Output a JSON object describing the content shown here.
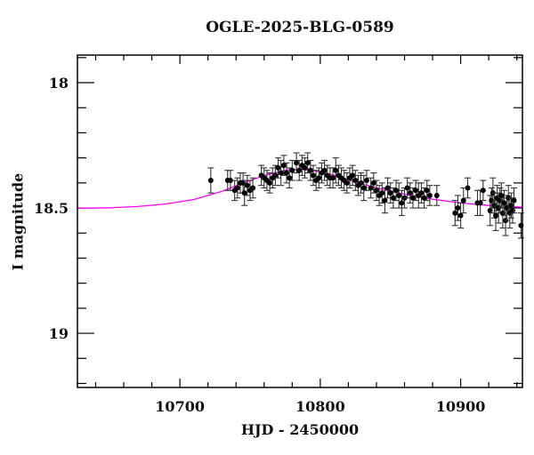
{
  "chart_data": {
    "type": "scatter",
    "title": "OGLE-2025-BLG-0589",
    "xlabel": "HJD - 2450000",
    "ylabel": "I magnitude",
    "xlim": [
      10627,
      10944
    ],
    "ylim": [
      19.216,
      17.89
    ],
    "y_inverted": true,
    "xticks_major": [
      10700,
      10800,
      10900
    ],
    "xticks_minor_step": 20,
    "yticks_major": [
      18,
      18.5,
      19
    ],
    "yticks_major_labels": [
      "18",
      "18.5",
      "19"
    ],
    "yticks_minor_step": 0.1,
    "grid": false,
    "legend": null,
    "colors": {
      "data": "#000000",
      "errorbar": "#333333",
      "model": "#ff00ff",
      "frame": "#000000"
    },
    "series": [
      {
        "name": "OGLE photometry",
        "kind": "errorbar",
        "points": [
          [
            10722,
            18.39,
            0.05
          ],
          [
            10734,
            18.39,
            0.04
          ],
          [
            10736,
            18.39,
            0.04
          ],
          [
            10739,
            18.43,
            0.04
          ],
          [
            10741,
            18.42,
            0.04
          ],
          [
            10743,
            18.4,
            0.04
          ],
          [
            10745,
            18.4,
            0.04
          ],
          [
            10746,
            18.44,
            0.05
          ],
          [
            10748,
            18.41,
            0.04
          ],
          [
            10750,
            18.43,
            0.04
          ],
          [
            10752,
            18.42,
            0.04
          ],
          [
            10758,
            18.37,
            0.04
          ],
          [
            10760,
            18.38,
            0.04
          ],
          [
            10762,
            18.39,
            0.04
          ],
          [
            10764,
            18.4,
            0.04
          ],
          [
            10766,
            18.38,
            0.04
          ],
          [
            10768,
            18.37,
            0.04
          ],
          [
            10770,
            18.34,
            0.04
          ],
          [
            10772,
            18.36,
            0.05
          ],
          [
            10774,
            18.33,
            0.04
          ],
          [
            10776,
            18.36,
            0.04
          ],
          [
            10778,
            18.38,
            0.04
          ],
          [
            10780,
            18.35,
            0.04
          ],
          [
            10783,
            18.32,
            0.04
          ],
          [
            10785,
            18.35,
            0.04
          ],
          [
            10787,
            18.33,
            0.04
          ],
          [
            10789,
            18.34,
            0.04
          ],
          [
            10791,
            18.32,
            0.04
          ],
          [
            10793,
            18.35,
            0.04
          ],
          [
            10795,
            18.37,
            0.04
          ],
          [
            10797,
            18.39,
            0.04
          ],
          [
            10799,
            18.38,
            0.04
          ],
          [
            10801,
            18.36,
            0.04
          ],
          [
            10803,
            18.35,
            0.04
          ],
          [
            10805,
            18.37,
            0.04
          ],
          [
            10807,
            18.38,
            0.04
          ],
          [
            10809,
            18.38,
            0.04
          ],
          [
            10811,
            18.35,
            0.05
          ],
          [
            10813,
            18.37,
            0.04
          ],
          [
            10815,
            18.38,
            0.04
          ],
          [
            10817,
            18.39,
            0.04
          ],
          [
            10819,
            18.4,
            0.04
          ],
          [
            10821,
            18.38,
            0.04
          ],
          [
            10823,
            18.37,
            0.04
          ],
          [
            10825,
            18.39,
            0.04
          ],
          [
            10827,
            18.41,
            0.04
          ],
          [
            10829,
            18.4,
            0.04
          ],
          [
            10831,
            18.42,
            0.05
          ],
          [
            10833,
            18.39,
            0.04
          ],
          [
            10836,
            18.42,
            0.04
          ],
          [
            10838,
            18.4,
            0.04
          ],
          [
            10840,
            18.43,
            0.04
          ],
          [
            10842,
            18.45,
            0.04
          ],
          [
            10844,
            18.44,
            0.04
          ],
          [
            10846,
            18.47,
            0.05
          ],
          [
            10848,
            18.42,
            0.04
          ],
          [
            10850,
            18.44,
            0.04
          ],
          [
            10852,
            18.46,
            0.04
          ],
          [
            10854,
            18.43,
            0.04
          ],
          [
            10856,
            18.45,
            0.05
          ],
          [
            10858,
            18.48,
            0.05
          ],
          [
            10860,
            18.46,
            0.04
          ],
          [
            10862,
            18.42,
            0.04
          ],
          [
            10864,
            18.44,
            0.04
          ],
          [
            10866,
            18.46,
            0.04
          ],
          [
            10868,
            18.43,
            0.04
          ],
          [
            10870,
            18.45,
            0.05
          ],
          [
            10872,
            18.44,
            0.04
          ],
          [
            10874,
            18.46,
            0.04
          ],
          [
            10876,
            18.43,
            0.04
          ],
          [
            10878,
            18.45,
            0.04
          ],
          [
            10883,
            18.45,
            0.04
          ],
          [
            10896,
            18.52,
            0.05
          ],
          [
            10898,
            18.5,
            0.05
          ],
          [
            10900,
            18.53,
            0.05
          ],
          [
            10902,
            18.47,
            0.05
          ],
          [
            10905,
            18.42,
            0.04
          ],
          [
            10912,
            18.48,
            0.05
          ],
          [
            10914,
            18.48,
            0.05
          ],
          [
            10916,
            18.43,
            0.04
          ],
          [
            10921,
            18.51,
            0.06
          ],
          [
            10922,
            18.47,
            0.05
          ],
          [
            10923,
            18.44,
            0.06
          ],
          [
            10924,
            18.49,
            0.05
          ],
          [
            10925,
            18.53,
            0.06
          ],
          [
            10926,
            18.46,
            0.05
          ],
          [
            10927,
            18.5,
            0.06
          ],
          [
            10928,
            18.47,
            0.05
          ],
          [
            10929,
            18.45,
            0.05
          ],
          [
            10930,
            18.52,
            0.06
          ],
          [
            10931,
            18.48,
            0.05
          ],
          [
            10932,
            18.55,
            0.06
          ],
          [
            10933,
            18.5,
            0.05
          ],
          [
            10934,
            18.46,
            0.05
          ],
          [
            10935,
            18.52,
            0.06
          ],
          [
            10936,
            18.49,
            0.05
          ],
          [
            10937,
            18.51,
            0.05
          ],
          [
            10938,
            18.47,
            0.05
          ],
          [
            10943,
            18.57,
            0.05
          ]
        ]
      },
      {
        "name": "Model",
        "kind": "line",
        "x": [
          10627,
          10650,
          10670,
          10690,
          10710,
          10730,
          10745,
          10760,
          10775,
          10785,
          10795,
          10810,
          10825,
          10840,
          10860,
          10880,
          10900,
          10920,
          10944
        ],
        "y": [
          18.501,
          18.499,
          18.494,
          18.484,
          18.466,
          18.433,
          18.401,
          18.37,
          18.35,
          18.345,
          18.35,
          18.37,
          18.396,
          18.42,
          18.445,
          18.465,
          18.48,
          18.49,
          18.497
        ]
      }
    ]
  }
}
